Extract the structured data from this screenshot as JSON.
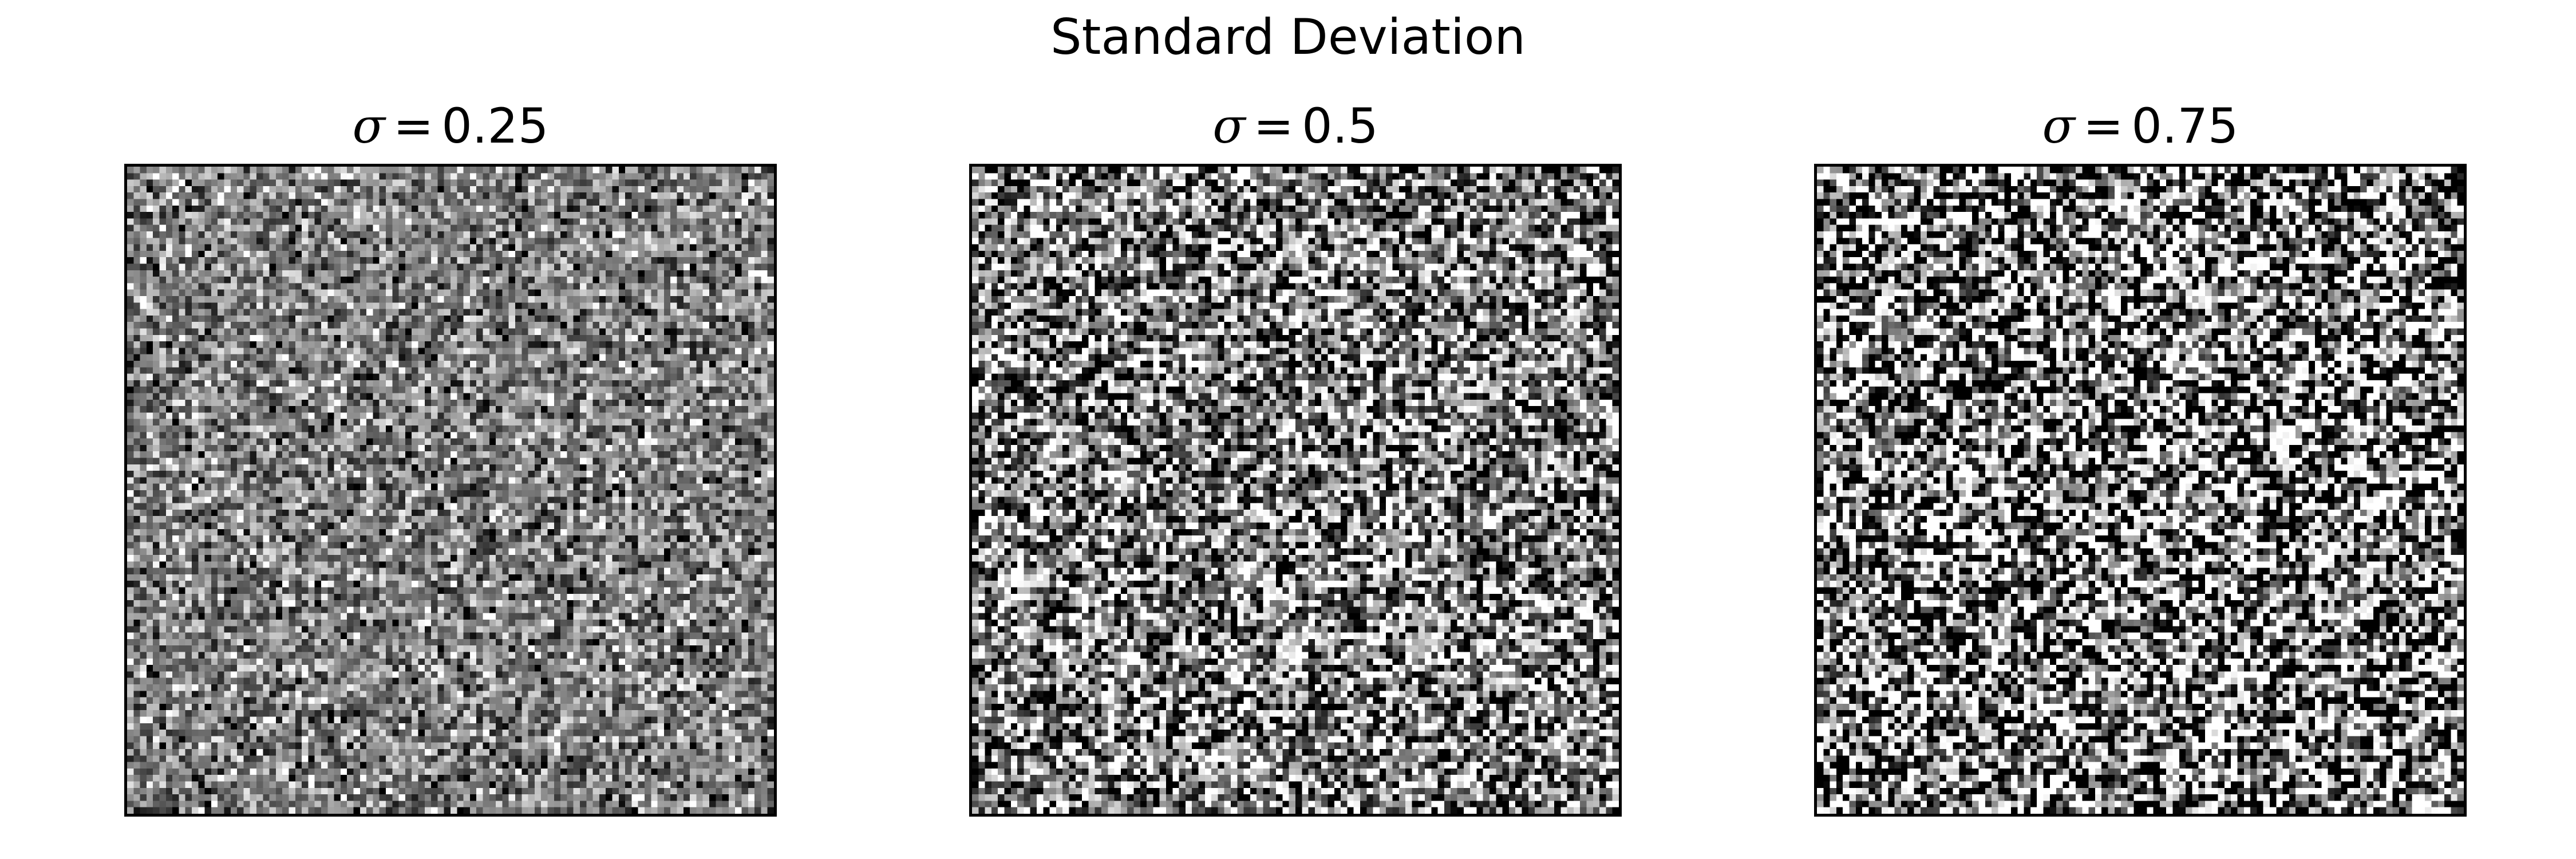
{
  "figure": {
    "suptitle": "Standard Deviation"
  },
  "chart_data": [
    {
      "type": "heatmap",
      "title": "σ = 0.25",
      "title_parts": {
        "symbol": "σ",
        "equals": "=",
        "value": "0.25"
      },
      "sigma": 0.25,
      "mean": 0.5,
      "grid_size": [
        100,
        100
      ],
      "colormap": "gray",
      "value_range": [
        0,
        1
      ],
      "xticks": [],
      "yticks": [],
      "xlabel": "",
      "ylabel": ""
    },
    {
      "type": "heatmap",
      "title": "σ = 0.5",
      "title_parts": {
        "symbol": "σ",
        "equals": "=",
        "value": "0.5"
      },
      "sigma": 0.5,
      "mean": 0.5,
      "grid_size": [
        100,
        100
      ],
      "colormap": "gray",
      "value_range": [
        0,
        1
      ],
      "xticks": [],
      "yticks": [],
      "xlabel": "",
      "ylabel": ""
    },
    {
      "type": "heatmap",
      "title": "σ = 0.75",
      "title_parts": {
        "symbol": "σ",
        "equals": "=",
        "value": "0.75"
      },
      "sigma": 0.75,
      "mean": 0.5,
      "grid_size": [
        100,
        100
      ],
      "colormap": "gray",
      "value_range": [
        0,
        1
      ],
      "xticks": [],
      "yticks": [],
      "xlabel": "",
      "ylabel": ""
    }
  ],
  "colors": {
    "background": "#ffffff",
    "frame": "#000000",
    "text": "#000000"
  }
}
